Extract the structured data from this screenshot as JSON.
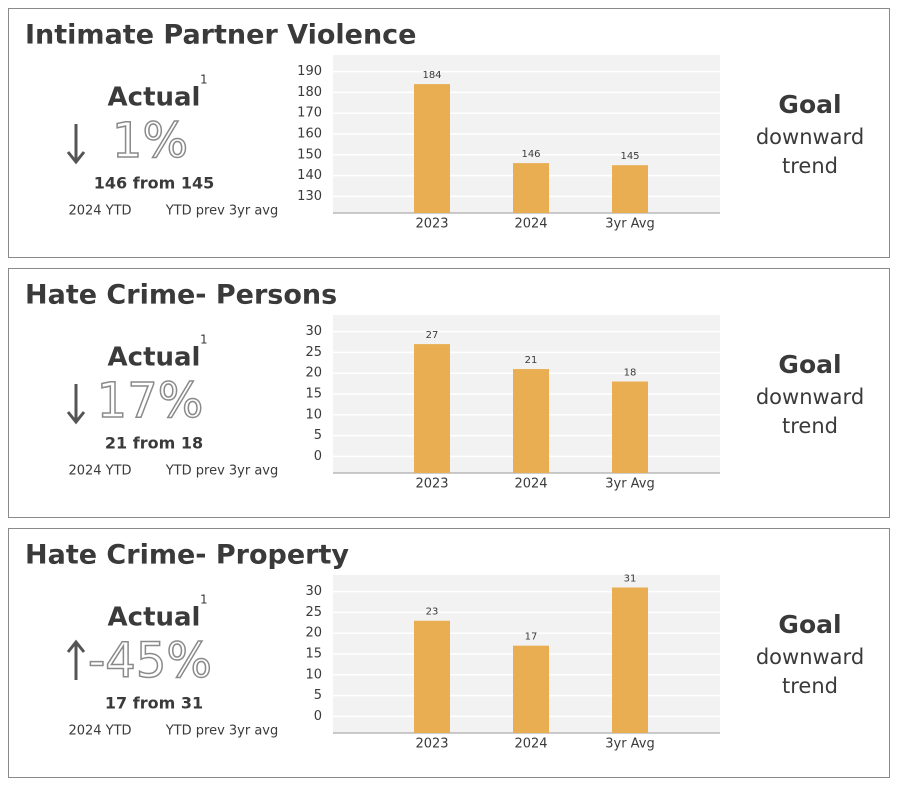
{
  "panels": [
    {
      "kpi": {
        "label": "Actual",
        "footnote": "1",
        "change": "1%",
        "detail": "146 from 145",
        "current_label": "2024 YTD",
        "baseline_label": "YTD prev 3yr avg"
      },
      "goal": {
        "label": "Goal",
        "line1": "downward",
        "line2": "trend"
      }
    },
    {
      "kpi": {
        "label": "Actual",
        "footnote": "1",
        "change": "17%",
        "detail": "21 from 18",
        "current_label": "2024 YTD",
        "baseline_label": "YTD prev 3yr avg"
      },
      "goal": {
        "label": "Goal",
        "line1": "downward",
        "line2": "trend"
      }
    },
    {
      "kpi": {
        "label": "Actual",
        "footnote": "1",
        "change": "-45%",
        "detail": "17 from 31",
        "current_label": "2024 YTD",
        "baseline_label": "YTD prev 3yr avg"
      },
      "goal": {
        "label": "Goal",
        "line1": "downward",
        "line2": "trend"
      }
    }
  ],
  "chart_data": [
    {
      "type": "bar",
      "title": "Intimate Partner Violence",
      "categories": [
        "2023",
        "2024",
        "3yr Avg"
      ],
      "values": [
        184,
        146,
        145
      ],
      "color": "#e9ae52",
      "ylim": [
        122,
        198
      ],
      "yticks": [
        130,
        140,
        150,
        160,
        170,
        180,
        190
      ],
      "grid": true
    },
    {
      "type": "bar",
      "title": "Hate Crime- Persons",
      "categories": [
        "2023",
        "2024",
        "3yr Avg"
      ],
      "values": [
        27,
        21,
        18
      ],
      "color": "#e9ae52",
      "ylim": [
        -4,
        34
      ],
      "yticks": [
        0,
        5,
        10,
        15,
        20,
        25,
        30
      ],
      "grid": true
    },
    {
      "type": "bar",
      "title": "Hate Crime- Property",
      "categories": [
        "2023",
        "2024",
        "3yr Avg"
      ],
      "values": [
        23,
        17,
        31
      ],
      "color": "#e9ae52",
      "ylim": [
        -4,
        34
      ],
      "yticks": [
        0,
        5,
        10,
        15,
        20,
        25,
        30
      ],
      "grid": true
    }
  ]
}
